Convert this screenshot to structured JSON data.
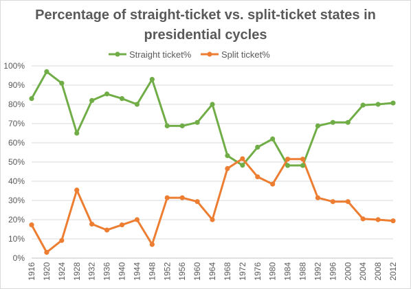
{
  "chart_data": {
    "type": "line",
    "title_line1": "Percentage of straight-ticket  vs. split-ticket  states  in",
    "title_line2": "presidential  cycles",
    "xlabel": "",
    "ylabel": "",
    "ylim": [
      0,
      100
    ],
    "y_tick_labels": [
      "0%",
      "10%",
      "20%",
      "30%",
      "40%",
      "50%",
      "60%",
      "70%",
      "80%",
      "90%",
      "100%"
    ],
    "grid": true,
    "legend": "top",
    "categories": [
      "1916",
      "1920",
      "1924",
      "1928",
      "1932",
      "1936",
      "1940",
      "1944",
      "1948",
      "1952",
      "1956",
      "1960",
      "1964",
      "1968",
      "1972",
      "1976",
      "1980",
      "1984",
      "1988",
      "1992",
      "1996",
      "2000",
      "2004",
      "2008",
      "2012"
    ],
    "series": [
      {
        "name": "Straight ticket%",
        "color": "#70ad47",
        "values": [
          83,
          97,
          91,
          65,
          82,
          85.4,
          83,
          80,
          93,
          68.8,
          68.8,
          70.6,
          80,
          53.3,
          48.3,
          57.7,
          62,
          48.2,
          48.2,
          68.8,
          70.6,
          70.6,
          79.6,
          80,
          80.7
        ]
      },
      {
        "name": "Split ticket%",
        "color": "#ed7d31",
        "values": [
          17.3,
          3,
          9.2,
          35.4,
          17.7,
          14.6,
          17.3,
          20,
          7.1,
          31.4,
          31.4,
          29.4,
          20,
          46.6,
          51.7,
          42.3,
          38.5,
          51.5,
          51.5,
          31.4,
          29.4,
          29.4,
          20.4,
          20,
          19.4
        ]
      }
    ]
  }
}
